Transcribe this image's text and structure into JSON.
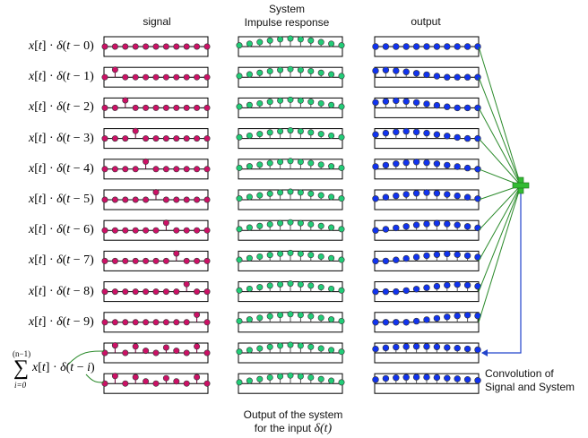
{
  "headers": {
    "signal": "signal",
    "system_line1": "System",
    "system_line2": "Impulse response",
    "output": "output"
  },
  "rows": [
    {
      "label_shift": "0",
      "signal_impulse_index": 0,
      "output_peak_index": 0
    },
    {
      "label_shift": "1",
      "signal_impulse_index": 1,
      "output_peak_index": 1
    },
    {
      "label_shift": "2",
      "signal_impulse_index": 2,
      "output_peak_index": 2
    },
    {
      "label_shift": "3",
      "signal_impulse_index": 3,
      "output_peak_index": 3
    },
    {
      "label_shift": "4",
      "signal_impulse_index": 4,
      "output_peak_index": 4
    },
    {
      "label_shift": "5",
      "signal_impulse_index": 5,
      "output_peak_index": 5
    },
    {
      "label_shift": "6",
      "signal_impulse_index": 6,
      "output_peak_index": 6
    },
    {
      "label_shift": "7",
      "signal_impulse_index": 7,
      "output_peak_index": 7
    },
    {
      "label_shift": "8",
      "signal_impulse_index": 8,
      "output_peak_index": 8
    },
    {
      "label_shift": "9",
      "signal_impulse_index": 9,
      "output_peak_index": 9
    }
  ],
  "sum_label": {
    "upper": "(n−1)",
    "lower": "i=0",
    "shift": "i"
  },
  "impulse_response": [
    0.15,
    0.35,
    0.55,
    0.75,
    0.9,
    1.0,
    0.9,
    0.75,
    0.55,
    0.35,
    0.15
  ],
  "combined_signal": [
    0.0,
    0.7,
    0.0,
    0.6,
    0.2,
    0.0,
    0.5,
    0.2,
    0.0,
    0.6,
    0.0
  ],
  "notes": {
    "bottom_line1": "Output of the system",
    "bottom_line2": "for the input",
    "bottom_input": "δ(t)",
    "right_line1": "Convolution of",
    "right_line2": "Signal and System"
  },
  "colors": {
    "signal_dot": "#cc1166",
    "signal_stem": "#660033",
    "impulse_dot": "#22cc77",
    "output_dot": "#1133ee",
    "line_green": "#2a8a2a",
    "line_blue": "#2244cc",
    "plus_green": "#33bb33"
  }
}
